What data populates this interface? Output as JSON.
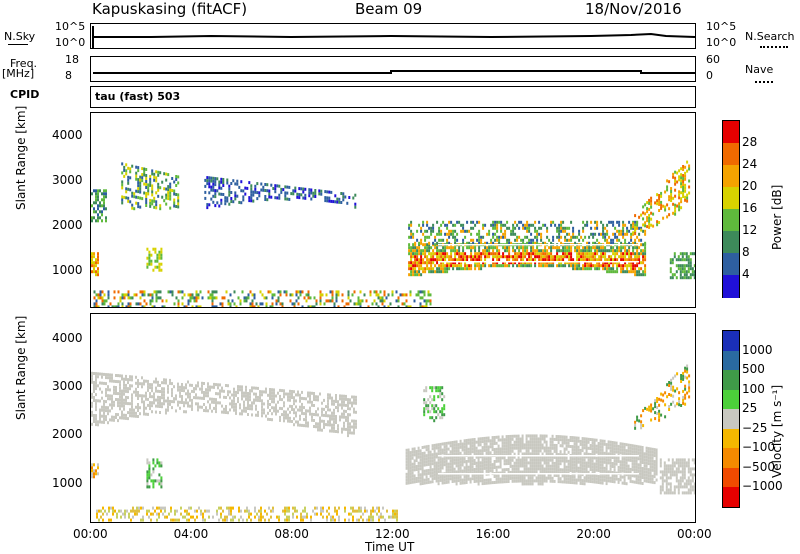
{
  "header": {
    "station": "Kapuskasing (fitACF)",
    "beam": "Beam 09",
    "date": "18/Nov/2016"
  },
  "strips": {
    "nsky_label": "N.Sky",
    "nsky_ticks": [
      "10^5",
      "10^0"
    ],
    "nsearch_label": "N.Search",
    "nsearch_ticks": [
      "10^5",
      "10^0"
    ],
    "freq_label": "Freq.",
    "freq_unit": "[MHz]",
    "freq_ticks": [
      "18",
      "8"
    ],
    "nave_label": "Nave",
    "nave_ticks": [
      "60",
      "0"
    ],
    "cpid_label": "CPID",
    "cpid_value": "tau (fast) 503"
  },
  "chart_data": [
    {
      "type": "heatmap",
      "name_panel": "power",
      "ylabel": "Slant Range [km]",
      "yticks": [
        "4000",
        "3000",
        "2000",
        "1000"
      ],
      "ylim": [
        180,
        4500
      ],
      "colorbar": {
        "label": "Power [dB]",
        "ticks": [
          "28",
          "24",
          "20",
          "16",
          "12",
          "8",
          "4"
        ],
        "colors": [
          "#e60000",
          "#f06a00",
          "#f5a300",
          "#d7d200",
          "#5fb93c",
          "#3d8a5a",
          "#2e5fa0",
          "#2010d8"
        ]
      }
    },
    {
      "type": "heatmap",
      "name_panel": "velocity",
      "ylabel": "Slant Range [km]",
      "yticks": [
        "4000",
        "3000",
        "2000",
        "1000"
      ],
      "ylim": [
        180,
        4500
      ],
      "xlabel": "Time UT",
      "xticks": [
        "00:00",
        "04:00",
        "08:00",
        "12:00",
        "16:00",
        "20:00",
        "00:00"
      ],
      "xlim": [
        0,
        24
      ],
      "colorbar": {
        "label": "Velocity [m s⁻¹]",
        "ticks": [
          "1000",
          "500",
          "100",
          "25",
          "−25",
          "−100",
          "−500",
          "−1000"
        ],
        "colors": [
          "#1a2fb8",
          "#2a6aa0",
          "#3f9a48",
          "#4cd03a",
          "#c8c8c0",
          "#f5b800",
          "#f58a00",
          "#f04a00",
          "#e60000"
        ]
      }
    }
  ]
}
